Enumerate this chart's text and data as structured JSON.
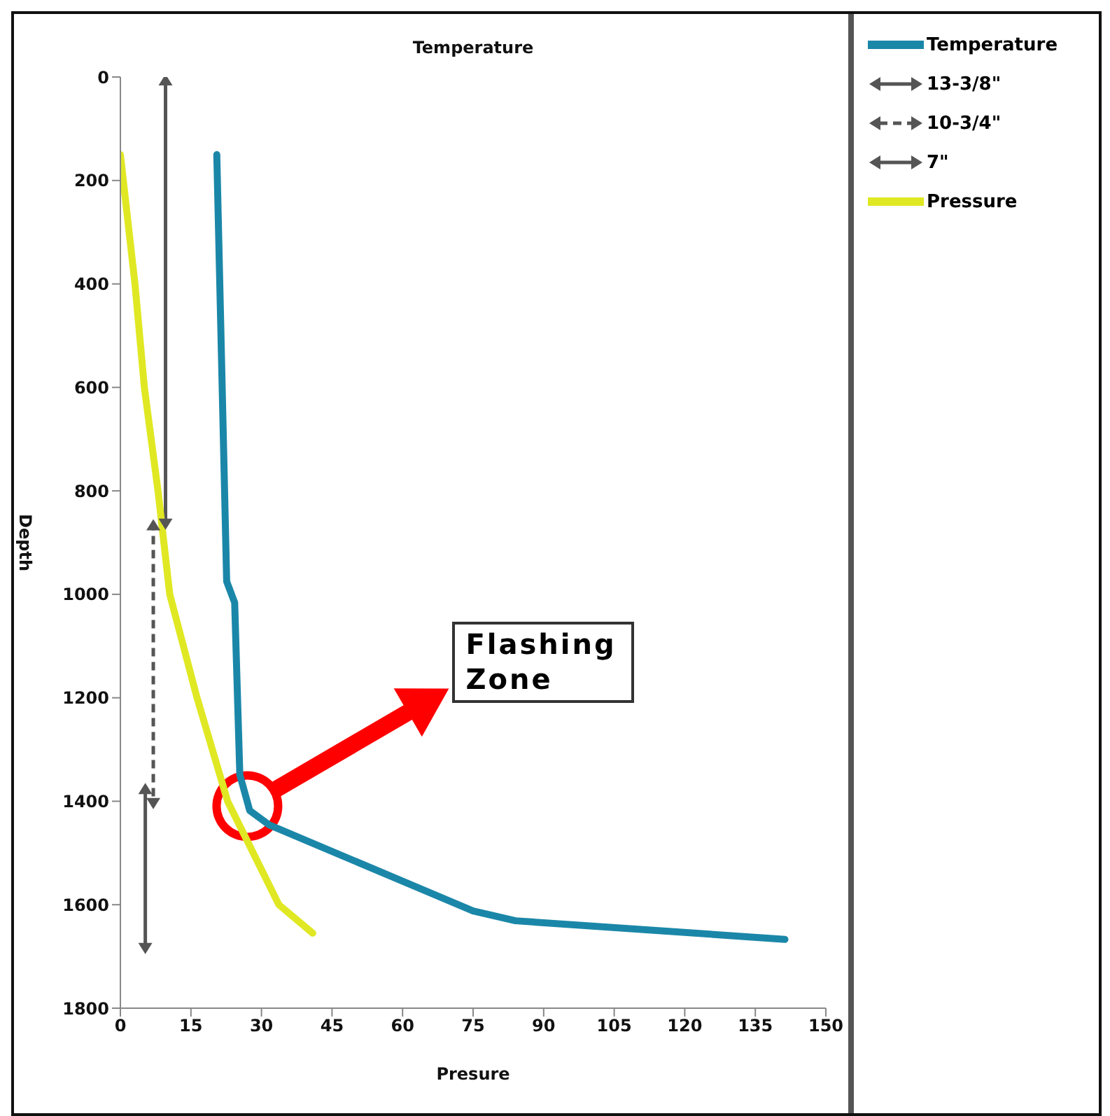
{
  "chart_data": {
    "type": "line",
    "title": "Temperature",
    "xlabel": "Presure",
    "ylabel": "Depth",
    "xlim": [
      0,
      150
    ],
    "xticks": [
      0,
      15,
      30,
      45,
      60,
      75,
      90,
      105,
      120,
      135,
      150
    ],
    "ylim": [
      1800,
      0
    ],
    "yticks": [
      0,
      200,
      400,
      600,
      800,
      1000,
      1200,
      1400,
      1600,
      1800
    ],
    "grid": false,
    "legend": "top right",
    "series": [
      {
        "name": "Temperature",
        "color": "#1b87a8",
        "x": [
          20.5,
          22.6,
          24.3,
          25.4,
          27.5,
          31.7,
          75,
          84,
          141.3
        ],
        "values": [
          150,
          975,
          1016,
          1349,
          1418,
          1446,
          1612,
          1631,
          1667
        ]
      },
      {
        "name": "13-3/8\"",
        "color": "#555555",
        "marker": "triangle",
        "line_style": "solid",
        "x": [
          9.6,
          9.6
        ],
        "values": [
          0,
          870
        ]
      },
      {
        "name": "10-3/4\"",
        "color": "#555555",
        "marker": "triangle",
        "line_style": "dashed",
        "x": [
          7,
          7
        ],
        "values": [
          860,
          1410
        ]
      },
      {
        "name": "7\"",
        "color": "#555555",
        "marker": "triangle",
        "line_style": "solid",
        "x": [
          5.3,
          5.3
        ],
        "values": [
          1370,
          1690
        ]
      },
      {
        "name": "Pressure",
        "color": "#e0e823",
        "x": [
          0,
          3.1,
          5.1,
          8,
          10.5,
          16.3,
          22.8,
          33.7,
          40.9
        ],
        "values": [
          150,
          400,
          600,
          800,
          1000,
          1200,
          1400,
          1600,
          1655
        ]
      }
    ],
    "annotations": [
      "Flashing Zone"
    ]
  }
}
